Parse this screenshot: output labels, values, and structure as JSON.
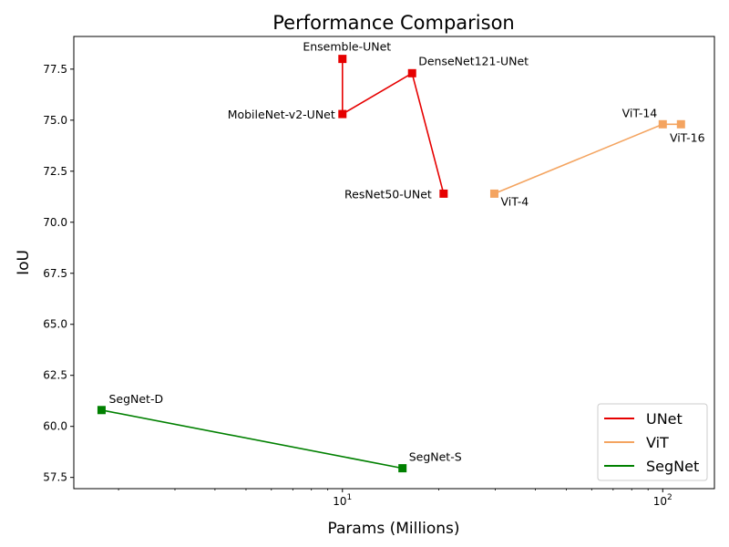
{
  "chart_data": {
    "type": "line",
    "title": "Performance Comparison",
    "xlabel": "Params (Millions)",
    "ylabel": "IoU",
    "xscale": "log",
    "xlim": [
      1.45,
      145
    ],
    "ylim": [
      56.95,
      79.1
    ],
    "yticks": [
      "57.5",
      "60.0",
      "62.5",
      "65.0",
      "67.5",
      "70.0",
      "72.5",
      "75.0",
      "77.5"
    ],
    "xticks": [
      {
        "value": 10,
        "base": "10",
        "exp": "1"
      },
      {
        "value": 100,
        "base": "10",
        "exp": "2"
      }
    ],
    "grid": false,
    "legend_position": "lower right",
    "series": [
      {
        "name": "UNet",
        "color": "#e60000",
        "points": [
          {
            "label": "Ensemble-UNet",
            "x": 10,
            "y": 78.0
          },
          {
            "label": "MobileNet-v2-UNet",
            "x": 10,
            "y": 75.3
          },
          {
            "label": "DenseNet121-UNet",
            "x": 16.5,
            "y": 77.3
          },
          {
            "label": "ResNet50-UNet",
            "x": 20.7,
            "y": 71.4
          }
        ]
      },
      {
        "name": "ViT",
        "color": "#f4a460",
        "points": [
          {
            "label": "ViT-4",
            "x": 29.8,
            "y": 71.4
          },
          {
            "label": "ViT-14",
            "x": 100,
            "y": 74.8
          },
          {
            "label": "ViT-16",
            "x": 114,
            "y": 74.8
          }
        ]
      },
      {
        "name": "SegNet",
        "color": "#008000",
        "points": [
          {
            "label": "SegNet-D",
            "x": 1.77,
            "y": 60.8
          },
          {
            "label": "SegNet-S",
            "x": 15.4,
            "y": 57.95
          }
        ]
      }
    ]
  }
}
